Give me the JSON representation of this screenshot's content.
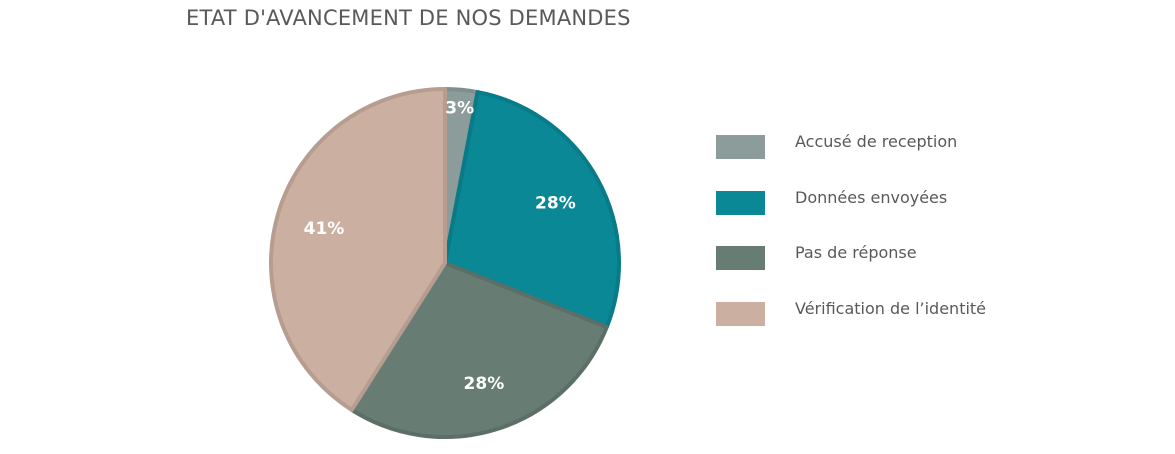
{
  "chart_data": {
    "type": "pie",
    "title": "ETAT D'AVANCEMENT DE NOS DEMANDES",
    "slices": [
      {
        "label": "Accusé de reception",
        "value": 3,
        "data_label": "3%",
        "color": "#8c9c9a",
        "edge": "#7f8f8d"
      },
      {
        "label": "Données envoyées",
        "value": 28,
        "data_label": "28%",
        "color": "#0a8896",
        "edge": "#097a87"
      },
      {
        "label": "Pas de réponse",
        "value": 28,
        "data_label": "28%",
        "color": "#677d74",
        "edge": "#5b6f67"
      },
      {
        "label": "Vérification de l’identité",
        "value": 41,
        "data_label": "41%",
        "color": "#cbb0a2",
        "edge": "#b79d90"
      }
    ],
    "legend_position": "right"
  }
}
